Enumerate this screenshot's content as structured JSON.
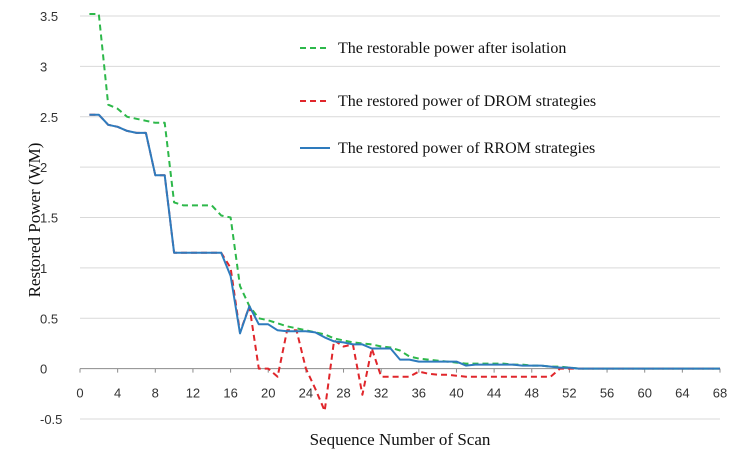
{
  "chart_data": {
    "type": "line",
    "title": "",
    "xlabel": "Sequence Number of Scan",
    "ylabel": "Restored Power (WM)",
    "xlim": [
      0,
      68
    ],
    "ylim": [
      -0.5,
      3.5
    ],
    "x_ticks": [
      0,
      4,
      8,
      12,
      16,
      20,
      24,
      28,
      32,
      36,
      40,
      44,
      48,
      52,
      56,
      60,
      64,
      68
    ],
    "y_ticks": [
      -0.5,
      0,
      0.5,
      1,
      1.5,
      2,
      2.5,
      3,
      3.5
    ],
    "y_tick_labels": [
      "-0.5",
      "0",
      "0.5",
      "1",
      "1.5",
      "2",
      "2.5",
      "3",
      "3.5"
    ],
    "grid": "horizontal",
    "legend_position": "top-right",
    "series": [
      {
        "name": "The restorable power after isolation",
        "color": "#2db84a",
        "dash": "dashed",
        "x": [
          1,
          2,
          3,
          4,
          5,
          6,
          7,
          8,
          9,
          10,
          11,
          12,
          13,
          14,
          15,
          16,
          17,
          18,
          19,
          20,
          21,
          22,
          23,
          24,
          25,
          26,
          27,
          28,
          29,
          30,
          31,
          32,
          33,
          34,
          35,
          36,
          37,
          38,
          39,
          40,
          41,
          42,
          43,
          44,
          45,
          46,
          47,
          48,
          49,
          50,
          51,
          52,
          53,
          54,
          55,
          56,
          57,
          58,
          59,
          60,
          61,
          62,
          63,
          64,
          65,
          66,
          67,
          68
        ],
        "y": [
          3.52,
          3.52,
          2.62,
          2.58,
          2.5,
          2.48,
          2.46,
          2.44,
          2.44,
          1.65,
          1.62,
          1.62,
          1.62,
          1.62,
          1.52,
          1.5,
          0.82,
          0.62,
          0.5,
          0.48,
          0.45,
          0.42,
          0.4,
          0.38,
          0.36,
          0.34,
          0.3,
          0.28,
          0.26,
          0.25,
          0.24,
          0.22,
          0.21,
          0.18,
          0.12,
          0.1,
          0.09,
          0.08,
          0.07,
          0.06,
          0.05,
          0.05,
          0.05,
          0.05,
          0.05,
          0.04,
          0.04,
          0.03,
          0.03,
          0.02,
          0.02,
          0.01,
          0,
          0,
          0,
          0,
          0,
          0,
          0,
          0,
          0,
          0,
          0,
          0,
          0,
          0,
          0,
          0
        ]
      },
      {
        "name": "The restored power of DROM strategies",
        "color": "#e0262b",
        "dash": "dashed",
        "x": [
          1,
          2,
          3,
          4,
          5,
          6,
          7,
          8,
          9,
          10,
          11,
          12,
          13,
          14,
          15,
          16,
          17,
          18,
          19,
          20,
          21,
          22,
          23,
          24,
          25,
          26,
          27,
          28,
          29,
          30,
          31,
          32,
          33,
          34,
          35,
          36,
          37,
          38,
          39,
          40,
          41,
          42,
          43,
          44,
          45,
          46,
          47,
          48,
          49,
          50,
          51,
          52,
          53,
          54,
          55,
          56,
          57,
          58,
          59,
          60,
          61,
          62,
          63,
          64,
          65,
          66,
          67,
          68
        ],
        "y": [
          2.52,
          2.52,
          2.42,
          2.4,
          2.36,
          2.34,
          2.34,
          1.92,
          1.92,
          1.15,
          1.15,
          1.15,
          1.15,
          1.15,
          1.15,
          1.0,
          0.36,
          0.62,
          0.0,
          0.0,
          -0.08,
          0.38,
          0.38,
          0.0,
          -0.2,
          -0.42,
          0.28,
          0.22,
          0.24,
          -0.26,
          0.2,
          -0.08,
          -0.08,
          -0.08,
          -0.08,
          -0.03,
          -0.05,
          -0.06,
          -0.06,
          -0.07,
          -0.08,
          -0.08,
          -0.08,
          -0.08,
          -0.08,
          -0.08,
          -0.08,
          -0.08,
          -0.08,
          -0.08,
          0.0,
          0.0,
          0,
          0,
          0,
          0,
          0,
          0,
          0,
          0,
          0,
          0,
          0,
          0,
          0,
          0,
          0,
          0
        ]
      },
      {
        "name": "The restored power of RROM strategies",
        "color": "#2e7bbd",
        "dash": "solid",
        "x": [
          1,
          2,
          3,
          4,
          5,
          6,
          7,
          8,
          9,
          10,
          11,
          12,
          13,
          14,
          15,
          16,
          17,
          18,
          19,
          20,
          21,
          22,
          23,
          24,
          25,
          26,
          27,
          28,
          29,
          30,
          31,
          32,
          33,
          34,
          35,
          36,
          37,
          38,
          39,
          40,
          41,
          42,
          43,
          44,
          45,
          46,
          47,
          48,
          49,
          50,
          51,
          52,
          53,
          54,
          55,
          56,
          57,
          58,
          59,
          60,
          61,
          62,
          63,
          64,
          65,
          66,
          67,
          68
        ],
        "y": [
          2.52,
          2.52,
          2.42,
          2.4,
          2.36,
          2.34,
          2.34,
          1.92,
          1.92,
          1.15,
          1.15,
          1.15,
          1.15,
          1.15,
          1.15,
          0.92,
          0.35,
          0.62,
          0.44,
          0.44,
          0.38,
          0.37,
          0.37,
          0.37,
          0.36,
          0.31,
          0.27,
          0.26,
          0.24,
          0.24,
          0.2,
          0.2,
          0.2,
          0.09,
          0.09,
          0.07,
          0.07,
          0.07,
          0.07,
          0.07,
          0.03,
          0.04,
          0.04,
          0.04,
          0.04,
          0.04,
          0.03,
          0.03,
          0.03,
          0.02,
          0.01,
          0.01,
          0,
          0,
          0,
          0,
          0,
          0,
          0,
          0,
          0,
          0,
          0,
          0,
          0,
          0,
          0,
          0
        ]
      }
    ]
  }
}
